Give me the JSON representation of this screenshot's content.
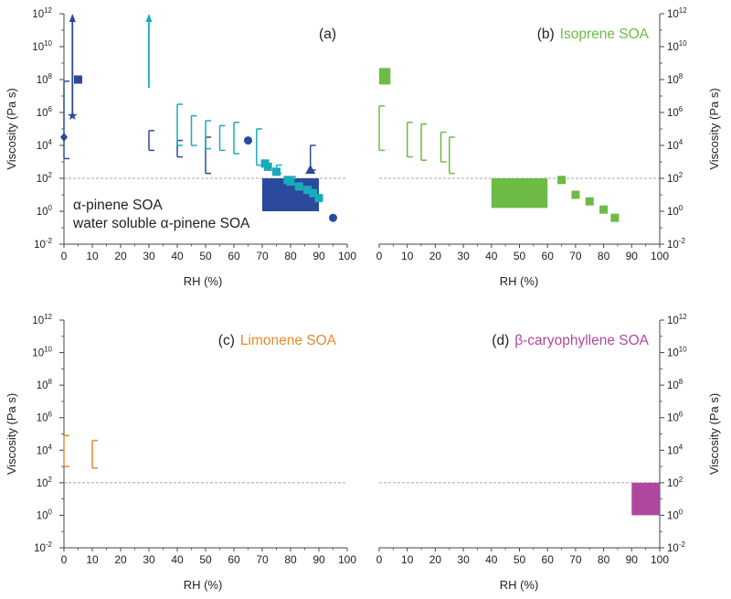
{
  "chart_data": [
    {
      "type": "scatter",
      "panel_label": "(a)",
      "title": "",
      "legend": [
        {
          "label": "α-pinene SOA",
          "color": "#2b4a9b"
        },
        {
          "label": "water soluble α-pinene SOA",
          "color": "#1aabba"
        }
      ],
      "xlabel": "RH (%)",
      "ylabel": "Viscosity (Pa s)",
      "xlim": [
        0,
        100
      ],
      "ylim_log10": [
        -2,
        12
      ],
      "reference_line_log10": 2,
      "series": [
        {
          "name": "α-pinene SOA",
          "color": "#2b4a9b",
          "points": [
            {
              "x": 0,
              "y": 4.5,
              "marker": "diamond"
            },
            {
              "x": 3,
              "y": 5.8,
              "marker": "star"
            },
            {
              "x": 5,
              "y": 8.0,
              "marker": "square"
            },
            {
              "x": 65,
              "y": 4.3,
              "marker": "circle"
            },
            {
              "x": 87,
              "y": 2.5,
              "marker": "triangle"
            },
            {
              "x": 95,
              "y": -0.4,
              "marker": "circle"
            }
          ],
          "error_bars": [
            {
              "x": 0,
              "low": 3.2,
              "high": 7.9
            },
            {
              "x": 30,
              "low": 3.7,
              "high": 4.9
            },
            {
              "x": 40,
              "low": 3.3,
              "high": 4.3
            },
            {
              "x": 50,
              "low": 2.3,
              "high": 4.5
            },
            {
              "x": 87,
              "low": 2.5,
              "high": 4.0
            }
          ],
          "arrows": [
            {
              "x": 3,
              "from": 5.8,
              "to": 12
            }
          ],
          "ranges": [
            {
              "x0": 70,
              "x1": 90,
              "y0": 0,
              "y1": 2
            }
          ]
        },
        {
          "name": "water soluble α-pinene SOA",
          "color": "#1aabba",
          "points": [
            {
              "x": 71,
              "y": 2.9,
              "marker": "square"
            },
            {
              "x": 72,
              "y": 2.7,
              "marker": "square"
            },
            {
              "x": 75,
              "y": 2.4,
              "marker": "square"
            },
            {
              "x": 79,
              "y": 1.9,
              "marker": "square"
            },
            {
              "x": 80,
              "y": 1.8,
              "marker": "square"
            },
            {
              "x": 83,
              "y": 1.5,
              "marker": "square"
            },
            {
              "x": 86,
              "y": 1.3,
              "marker": "square"
            },
            {
              "x": 88,
              "y": 1.1,
              "marker": "square"
            },
            {
              "x": 90,
              "y": 0.8,
              "marker": "square"
            }
          ],
          "error_bars": [
            {
              "x": 40,
              "low": 4.0,
              "high": 6.5
            },
            {
              "x": 45,
              "low": 4.0,
              "high": 5.8
            },
            {
              "x": 50,
              "low": 3.8,
              "high": 5.5
            },
            {
              "x": 55,
              "low": 3.7,
              "high": 5.2
            },
            {
              "x": 60,
              "low": 3.5,
              "high": 5.4
            },
            {
              "x": 68,
              "low": 2.8,
              "high": 5.0
            },
            {
              "x": 75,
              "low": 2.3,
              "high": 2.8
            },
            {
              "x": 80,
              "low": 1.6,
              "high": 2.1
            }
          ],
          "arrows": [
            {
              "x": 30,
              "from": 7.5,
              "to": 12
            }
          ],
          "ranges": []
        }
      ]
    },
    {
      "type": "scatter",
      "panel_label": "(b)",
      "title": "Isoprene SOA",
      "title_color": "#6dbb45",
      "xlabel": "RH (%)",
      "ylabel": "Viscosity (Pa s)",
      "xlim": [
        0,
        100
      ],
      "ylim_log10": [
        -2,
        12
      ],
      "reference_line_log10": 2,
      "series": [
        {
          "name": "Isoprene SOA",
          "color": "#6dbb45",
          "points": [
            {
              "x": 65,
              "y": 1.9,
              "marker": "square"
            },
            {
              "x": 70,
              "y": 1.0,
              "marker": "square"
            },
            {
              "x": 75,
              "y": 0.6,
              "marker": "square"
            },
            {
              "x": 80,
              "y": 0.1,
              "marker": "square"
            },
            {
              "x": 84,
              "y": -0.4,
              "marker": "square"
            }
          ],
          "error_bars": [
            {
              "x": 0,
              "low": 3.7,
              "high": 6.4
            },
            {
              "x": 10,
              "low": 3.3,
              "high": 5.4
            },
            {
              "x": 15,
              "low": 3.1,
              "high": 5.3
            },
            {
              "x": 22,
              "low": 3.0,
              "high": 4.8
            },
            {
              "x": 25,
              "low": 2.3,
              "high": 4.5
            }
          ],
          "arrows": [],
          "ranges": [
            {
              "x0": 0,
              "x1": 4,
              "y0": 7.7,
              "y1": 8.7
            },
            {
              "x0": 40,
              "x1": 60,
              "y0": 0.2,
              "y1": 2
            }
          ]
        }
      ]
    },
    {
      "type": "scatter",
      "panel_label": "(c)",
      "title": "Limonene SOA",
      "title_color": "#e88a2d",
      "xlabel": "RH (%)",
      "ylabel": "Viscosity (Pa s)",
      "xlim": [
        0,
        100
      ],
      "ylim_log10": [
        -2,
        12
      ],
      "reference_line_log10": 2,
      "series": [
        {
          "name": "Limonene SOA",
          "color": "#e88a2d",
          "points": [],
          "error_bars": [
            {
              "x": 0,
              "low": 3.0,
              "high": 4.9
            },
            {
              "x": 10,
              "low": 2.9,
              "high": 4.6
            }
          ],
          "arrows": [],
          "ranges": []
        }
      ]
    },
    {
      "type": "scatter",
      "panel_label": "(d)",
      "title": "β-caryophyllene SOA",
      "title_color": "#b0479e",
      "xlabel": "RH (%)",
      "ylabel": "Viscosity (Pa s)",
      "xlim": [
        0,
        100
      ],
      "ylim_log10": [
        -2,
        12
      ],
      "reference_line_log10": 2,
      "series": [
        {
          "name": "β-caryophyllene SOA",
          "color": "#b0479e",
          "points": [],
          "error_bars": [],
          "arrows": [],
          "ranges": [
            {
              "x0": 90,
              "x1": 100,
              "y0": 0,
              "y1": 2
            }
          ]
        }
      ]
    }
  ],
  "axis_text": {
    "x_ticks": [
      "0",
      "10",
      "20",
      "30",
      "40",
      "50",
      "60",
      "70",
      "80",
      "90",
      "100"
    ],
    "y_tick_exponents": [
      "12",
      "10",
      "8",
      "6",
      "4",
      "2",
      "0",
      "-2"
    ],
    "y_tick_base": "10"
  }
}
